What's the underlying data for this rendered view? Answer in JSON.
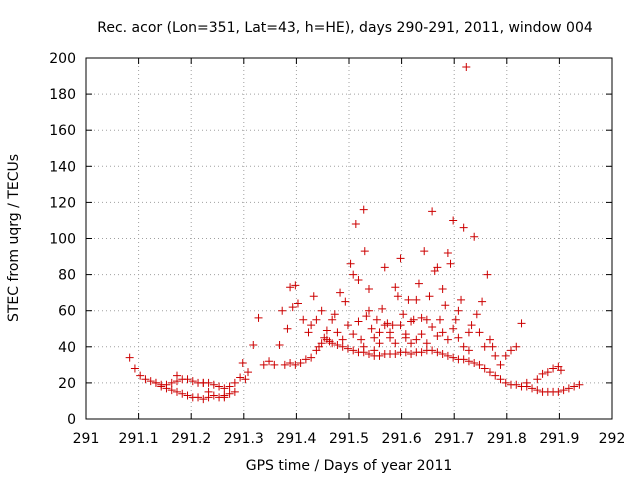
{
  "chart_data": {
    "type": "scatter",
    "title": "Rec. acor (Lon=351, Lat=43, h=HE), days 290-291, 2011, window 004",
    "xlabel": "GPS time / Days of year 2011",
    "ylabel": "STEC from uqrg / TECUs",
    "xlim": [
      291,
      292
    ],
    "ylim": [
      0,
      200
    ],
    "x_ticks": [
      "291",
      "291.1",
      "291.2",
      "291.3",
      "291.4",
      "291.5",
      "291.6",
      "291.7",
      "291.8",
      "291.9",
      "292"
    ],
    "y_ticks": [
      "0",
      "20",
      "40",
      "60",
      "80",
      "100",
      "120",
      "140",
      "160",
      "180",
      "200"
    ],
    "grid": true,
    "marker": "plus",
    "marker_color": "#cc0000",
    "series": [
      {
        "name": "",
        "points": [
          [
            291.083,
            34
          ],
          [
            291.093,
            28
          ],
          [
            291.103,
            24
          ],
          [
            291.113,
            22
          ],
          [
            291.123,
            21
          ],
          [
            291.133,
            20
          ],
          [
            291.143,
            19
          ],
          [
            291.153,
            19
          ],
          [
            291.163,
            20
          ],
          [
            291.173,
            21
          ],
          [
            291.183,
            22
          ],
          [
            291.193,
            22
          ],
          [
            291.203,
            21
          ],
          [
            291.213,
            20
          ],
          [
            291.223,
            20
          ],
          [
            291.233,
            20
          ],
          [
            291.243,
            19
          ],
          [
            291.253,
            18
          ],
          [
            291.263,
            17
          ],
          [
            291.273,
            18
          ],
          [
            291.283,
            20
          ],
          [
            291.293,
            23
          ],
          [
            291.303,
            22
          ],
          [
            291.133,
            20
          ],
          [
            291.143,
            18
          ],
          [
            291.153,
            17
          ],
          [
            291.163,
            16
          ],
          [
            291.173,
            15
          ],
          [
            291.183,
            14
          ],
          [
            291.193,
            13
          ],
          [
            291.203,
            12
          ],
          [
            291.213,
            12
          ],
          [
            291.223,
            11
          ],
          [
            291.233,
            12
          ],
          [
            291.243,
            13
          ],
          [
            291.253,
            12
          ],
          [
            291.263,
            13
          ],
          [
            291.273,
            14
          ],
          [
            291.283,
            15
          ],
          [
            291.173,
            24
          ],
          [
            291.233,
            15
          ],
          [
            291.263,
            12
          ],
          [
            291.223,
            20
          ],
          [
            291.298,
            31
          ],
          [
            291.308,
            26
          ],
          [
            291.318,
            41
          ],
          [
            291.328,
            56
          ],
          [
            291.338,
            30
          ],
          [
            291.348,
            32
          ],
          [
            291.358,
            30
          ],
          [
            291.368,
            41
          ],
          [
            291.378,
            30
          ],
          [
            291.388,
            31
          ],
          [
            291.398,
            30
          ],
          [
            291.408,
            31
          ],
          [
            291.418,
            33
          ],
          [
            291.428,
            34
          ],
          [
            291.438,
            38
          ],
          [
            291.448,
            42
          ],
          [
            291.458,
            44
          ],
          [
            291.468,
            42
          ],
          [
            291.478,
            41
          ],
          [
            291.488,
            40
          ],
          [
            291.498,
            39
          ],
          [
            291.508,
            38
          ],
          [
            291.518,
            37
          ],
          [
            291.528,
            37
          ],
          [
            291.538,
            36
          ],
          [
            291.548,
            35
          ],
          [
            291.558,
            35
          ],
          [
            291.568,
            36
          ],
          [
            291.578,
            36
          ],
          [
            291.588,
            36
          ],
          [
            291.598,
            37
          ],
          [
            291.608,
            37
          ],
          [
            291.618,
            36
          ],
          [
            291.628,
            37
          ],
          [
            291.638,
            37
          ],
          [
            291.648,
            38
          ],
          [
            291.658,
            38
          ],
          [
            291.668,
            37
          ],
          [
            291.678,
            36
          ],
          [
            291.688,
            35
          ],
          [
            291.698,
            34
          ],
          [
            291.708,
            33
          ],
          [
            291.718,
            33
          ],
          [
            291.728,
            32
          ],
          [
            291.738,
            31
          ],
          [
            291.748,
            30
          ],
          [
            291.758,
            28
          ],
          [
            291.768,
            26
          ],
          [
            291.778,
            24
          ],
          [
            291.788,
            22
          ],
          [
            291.798,
            20
          ],
          [
            291.808,
            19
          ],
          [
            291.818,
            19
          ],
          [
            291.828,
            18
          ],
          [
            291.838,
            18
          ],
          [
            291.848,
            17
          ],
          [
            291.858,
            16
          ],
          [
            291.868,
            15
          ],
          [
            291.878,
            15
          ],
          [
            291.888,
            15
          ],
          [
            291.898,
            15
          ],
          [
            291.908,
            16
          ],
          [
            291.918,
            17
          ],
          [
            291.928,
            18
          ],
          [
            291.938,
            19
          ],
          [
            291.373,
            60
          ],
          [
            291.383,
            50
          ],
          [
            291.388,
            73
          ],
          [
            291.393,
            62
          ],
          [
            291.398,
            74
          ],
          [
            291.403,
            64
          ],
          [
            291.413,
            55
          ],
          [
            291.423,
            48
          ],
          [
            291.428,
            52
          ],
          [
            291.433,
            68
          ],
          [
            291.438,
            55
          ],
          [
            291.443,
            40
          ],
          [
            291.448,
            60
          ],
          [
            291.453,
            45
          ],
          [
            291.458,
            49
          ],
          [
            291.463,
            43
          ],
          [
            291.468,
            55
          ],
          [
            291.473,
            58
          ],
          [
            291.478,
            48
          ],
          [
            291.483,
            70
          ],
          [
            291.488,
            44
          ],
          [
            291.493,
            65
          ],
          [
            291.498,
            52
          ],
          [
            291.503,
            86
          ],
          [
            291.508,
            80
          ],
          [
            291.513,
            108
          ],
          [
            291.518,
            77
          ],
          [
            291.523,
            44
          ],
          [
            291.528,
            116
          ],
          [
            291.53,
            93
          ],
          [
            291.533,
            57
          ],
          [
            291.538,
            72
          ],
          [
            291.543,
            50
          ],
          [
            291.548,
            38
          ],
          [
            291.553,
            55
          ],
          [
            291.558,
            48
          ],
          [
            291.563,
            61
          ],
          [
            291.568,
            84
          ],
          [
            291.573,
            53
          ],
          [
            291.578,
            45
          ],
          [
            291.583,
            52
          ],
          [
            291.588,
            73
          ],
          [
            291.593,
            68
          ],
          [
            291.598,
            89
          ],
          [
            291.603,
            58
          ],
          [
            291.608,
            45
          ],
          [
            291.613,
            66
          ],
          [
            291.618,
            42
          ],
          [
            291.623,
            55
          ],
          [
            291.628,
            66
          ],
          [
            291.633,
            75
          ],
          [
            291.638,
            47
          ],
          [
            291.643,
            93
          ],
          [
            291.648,
            55
          ],
          [
            291.653,
            68
          ],
          [
            291.658,
            115
          ],
          [
            291.663,
            82
          ],
          [
            291.668,
            84
          ],
          [
            291.673,
            55
          ],
          [
            291.678,
            72
          ],
          [
            291.683,
            63
          ],
          [
            291.688,
            92
          ],
          [
            291.693,
            86
          ],
          [
            291.698,
            110
          ],
          [
            291.703,
            55
          ],
          [
            291.708,
            60
          ],
          [
            291.713,
            66
          ],
          [
            291.718,
            106
          ],
          [
            291.723,
            195
          ],
          [
            291.728,
            48
          ],
          [
            291.733,
            52
          ],
          [
            291.738,
            101
          ],
          [
            291.743,
            58
          ],
          [
            291.748,
            48
          ],
          [
            291.753,
            65
          ],
          [
            291.758,
            40
          ],
          [
            291.763,
            80
          ],
          [
            291.768,
            44
          ],
          [
            291.773,
            40
          ],
          [
            291.778,
            35
          ],
          [
            291.788,
            30
          ],
          [
            291.798,
            35
          ],
          [
            291.808,
            38
          ],
          [
            291.818,
            40
          ],
          [
            291.828,
            53
          ],
          [
            291.838,
            20
          ],
          [
            291.858,
            22
          ],
          [
            291.868,
            25
          ],
          [
            291.878,
            26
          ],
          [
            291.888,
            28
          ],
          [
            291.898,
            29
          ],
          [
            291.903,
            27
          ],
          [
            291.508,
            47
          ],
          [
            291.518,
            54
          ],
          [
            291.528,
            40
          ],
          [
            291.538,
            60
          ],
          [
            291.548,
            45
          ],
          [
            291.558,
            42
          ],
          [
            291.568,
            52
          ],
          [
            291.578,
            48
          ],
          [
            291.588,
            42
          ],
          [
            291.598,
            52
          ],
          [
            291.608,
            47
          ],
          [
            291.618,
            54
          ],
          [
            291.628,
            44
          ],
          [
            291.638,
            56
          ],
          [
            291.648,
            42
          ],
          [
            291.658,
            51
          ],
          [
            291.668,
            46
          ],
          [
            291.678,
            48
          ],
          [
            291.688,
            44
          ],
          [
            291.698,
            50
          ],
          [
            291.708,
            45
          ],
          [
            291.718,
            40
          ],
          [
            291.728,
            38
          ]
        ]
      }
    ]
  }
}
